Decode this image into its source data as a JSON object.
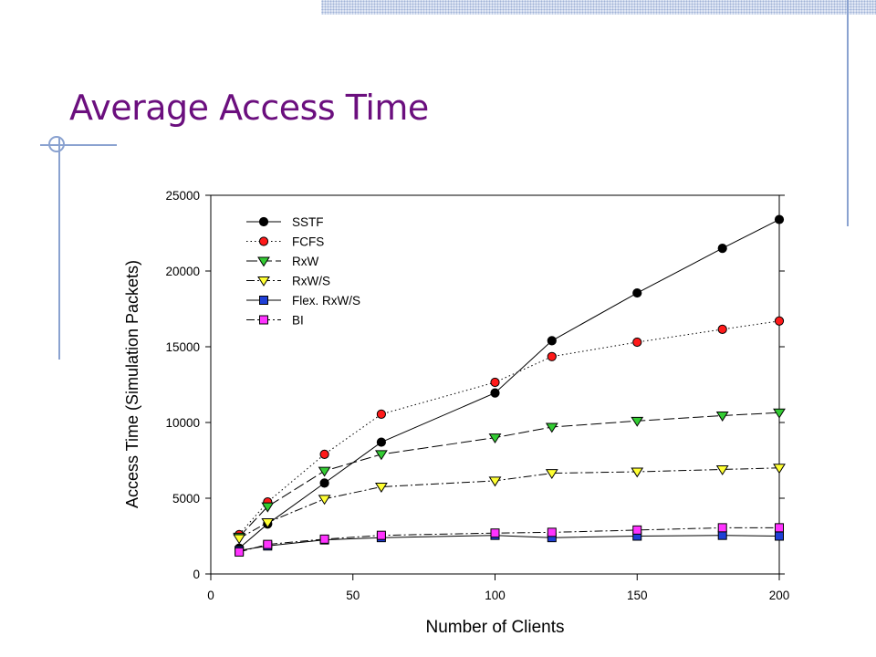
{
  "slide": {
    "title": "Average Access Time"
  },
  "chart_data": {
    "type": "line",
    "xlabel": "Number of Clients",
    "ylabel": "Access Time (Simulation Packets)",
    "xlim": [
      0,
      200
    ],
    "ylim": [
      0,
      25000
    ],
    "x_ticks": [
      0,
      50,
      100,
      150,
      200
    ],
    "y_ticks": [
      0,
      5000,
      10000,
      15000,
      20000,
      25000
    ],
    "x_tick_labels": [
      "0",
      "50",
      "100",
      "150",
      "200"
    ],
    "y_tick_labels": [
      "0",
      "5000",
      "10000",
      "15000",
      "20000",
      "25000"
    ],
    "grid": false,
    "legend_position": "top-left",
    "x": [
      10,
      20,
      40,
      60,
      100,
      120,
      150,
      180,
      200
    ],
    "series": [
      {
        "name": "SSTF",
        "marker": "circle",
        "color": "#000000",
        "line": "solid",
        "values": [
          1700,
          3300,
          6000,
          8700,
          11950,
          15400,
          18550,
          21500,
          23400
        ]
      },
      {
        "name": "FCFS",
        "marker": "circle",
        "color": "#ff1a1a",
        "line": "dotted",
        "values": [
          2600,
          4750,
          7900,
          10550,
          12650,
          14350,
          15300,
          16150,
          16700
        ]
      },
      {
        "name": "RxW",
        "marker": "triangle-down",
        "color": "#33cc33",
        "line": "longdash",
        "values": [
          2450,
          4450,
          6800,
          7900,
          9000,
          9700,
          10100,
          10450,
          10650
        ]
      },
      {
        "name": "RxW/S",
        "marker": "triangle-down",
        "color": "#ffff33",
        "line": "dashdot",
        "values": [
          2350,
          3400,
          4950,
          5750,
          6150,
          6650,
          6750,
          6900,
          7000
        ]
      },
      {
        "name": "Flex. RxW/S",
        "marker": "square",
        "color": "#1f3fd6",
        "line": "solid",
        "values": [
          1550,
          1850,
          2250,
          2400,
          2550,
          2400,
          2500,
          2550,
          2500
        ]
      },
      {
        "name": "BI",
        "marker": "square",
        "color": "#ff33ff",
        "line": "dashdot",
        "values": [
          1450,
          1950,
          2300,
          2550,
          2700,
          2750,
          2900,
          3050,
          3050
        ]
      }
    ]
  }
}
